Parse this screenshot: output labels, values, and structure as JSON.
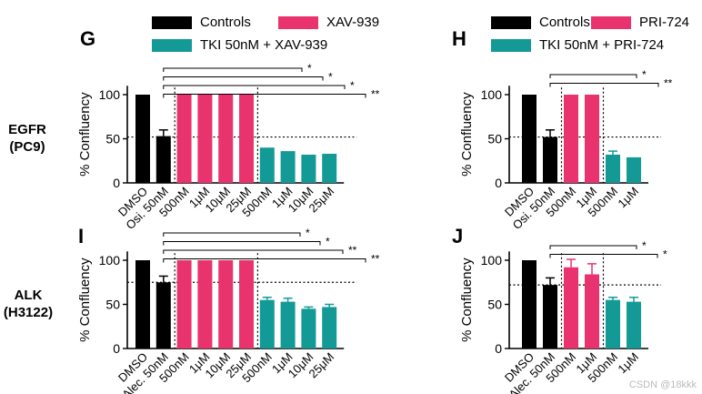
{
  "colors": {
    "control": "#000000",
    "pink": "#e8336e",
    "teal": "#139a96"
  },
  "legends": {
    "left_controls": "Controls",
    "left_inhibitor": "XAV-939",
    "left_combo": "TKI 50nM + XAV-939",
    "right_controls": "Controls",
    "right_inhibitor": "PRI-724",
    "right_combo": "TKI 50nM + PRI-724"
  },
  "row_labels": {
    "egfr": [
      "EGFR",
      "(PC9)"
    ],
    "alk": [
      "ALK",
      "(H3122)"
    ]
  },
  "watermark": "CSDN @18kkk",
  "chart_data": [
    {
      "panel": "G",
      "type": "bar",
      "ylabel": "% Confluency",
      "ylim": [
        0,
        110
      ],
      "yticks": [
        0,
        50,
        100
      ],
      "reference_line": 52,
      "categories": [
        "DMSO",
        "Osi. 50nM",
        "500nM",
        "1μM",
        "10μM",
        "25μM",
        "500nM",
        "1μM",
        "10μM",
        "25μM"
      ],
      "values": [
        100,
        53,
        100,
        100,
        100,
        100,
        40,
        36,
        32,
        33
      ],
      "errors": [
        0,
        7,
        0,
        0,
        0,
        0,
        0,
        0,
        0,
        0
      ],
      "groups": [
        "control",
        "control",
        "pink",
        "pink",
        "pink",
        "pink",
        "teal",
        "teal",
        "teal",
        "teal"
      ],
      "significance": [
        {
          "from": "Osi. 50nM",
          "to": "1μM",
          "label": "*"
        },
        {
          "from": "Osi. 50nM",
          "to": "10μM",
          "label": "*"
        },
        {
          "from": "Osi. 50nM",
          "to": "25μM",
          "label": "*"
        },
        {
          "from": "Osi. 50nM",
          "to": "25μM",
          "label": "**"
        }
      ]
    },
    {
      "panel": "H",
      "type": "bar",
      "ylabel": "% Confluency",
      "ylim": [
        0,
        110
      ],
      "yticks": [
        0,
        50,
        100
      ],
      "reference_line": 52,
      "categories": [
        "DMSO",
        "Osi. 50nM",
        "500nM",
        "1μM",
        "500nM",
        "1μM"
      ],
      "values": [
        100,
        52,
        100,
        100,
        32,
        29
      ],
      "errors": [
        0,
        8,
        0,
        0,
        4,
        0
      ],
      "groups": [
        "control",
        "control",
        "pink",
        "pink",
        "teal",
        "teal"
      ],
      "significance": [
        {
          "from": "Osi. 50nM",
          "to": "500nM",
          "label": "*"
        },
        {
          "from": "Osi. 50nM",
          "to": "1μM",
          "label": "**"
        }
      ]
    },
    {
      "panel": "I",
      "type": "bar",
      "ylabel": "% Confluency",
      "ylim": [
        0,
        110
      ],
      "yticks": [
        0,
        50,
        100
      ],
      "reference_line": 75,
      "categories": [
        "DMSO",
        "Alec. 50nM",
        "500nM",
        "1μM",
        "10μM",
        "25μM",
        "500nM",
        "1μM",
        "10μM",
        "25μM"
      ],
      "values": [
        100,
        75,
        100,
        100,
        100,
        100,
        55,
        53,
        45,
        47
      ],
      "errors": [
        0,
        7,
        0,
        0,
        0,
        0,
        3,
        4,
        2,
        3
      ],
      "groups": [
        "control",
        "control",
        "pink",
        "pink",
        "pink",
        "pink",
        "teal",
        "teal",
        "teal",
        "teal"
      ],
      "significance": [
        {
          "from": "Alec. 50nM",
          "to": "1μM",
          "label": "*"
        },
        {
          "from": "Alec. 50nM",
          "to": "10μM",
          "label": "*"
        },
        {
          "from": "Alec. 50nM",
          "to": "25μM",
          "label": "**"
        },
        {
          "from": "Alec. 50nM",
          "to": "25μM",
          "label": "**"
        }
      ]
    },
    {
      "panel": "J",
      "type": "bar",
      "ylabel": "% Confluency",
      "ylim": [
        0,
        110
      ],
      "yticks": [
        0,
        50,
        100
      ],
      "reference_line": 72,
      "categories": [
        "DMSO",
        "Alec. 50nM",
        "500nM",
        "1μM",
        "500nM",
        "1μM"
      ],
      "values": [
        100,
        72,
        92,
        84,
        55,
        53
      ],
      "errors": [
        0,
        8,
        9,
        12,
        3,
        5
      ],
      "groups": [
        "control",
        "control",
        "pink",
        "pink",
        "teal",
        "teal"
      ],
      "significance": [
        {
          "from": "Alec. 50nM",
          "to": "500nM",
          "label": "*"
        },
        {
          "from": "Alec. 50nM",
          "to": "1μM",
          "label": "*"
        }
      ]
    }
  ]
}
